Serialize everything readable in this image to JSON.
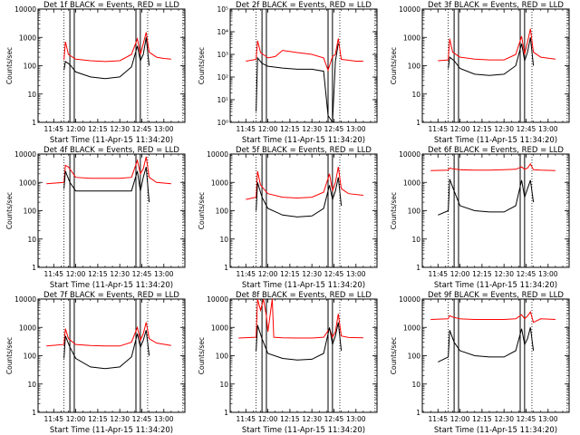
{
  "window": {
    "title": ""
  },
  "chart_data": [
    {
      "type": "line",
      "panel": 0,
      "title": "Det 1f BLACK = Events, RED = LLD",
      "xlabel": "Start Time (11-Apr-15 11:34:20)",
      "ylabel": "Counts/sec",
      "xlim": [
        "11:34:20",
        "13:14:20"
      ],
      "ylim": [
        1,
        10000
      ],
      "yscale": "log",
      "xticks": [
        "11:45",
        "12:00",
        "12:15",
        "12:30",
        "12:45",
        "13:00"
      ],
      "yticks": [
        "1",
        "10",
        "100",
        "1000",
        "10000"
      ],
      "solid_vlines": [
        "11:56",
        "11:59",
        "12:41",
        "12:44"
      ],
      "dotted_vlines": [
        "11:52",
        "12:49",
        "13:13"
      ],
      "series": [
        {
          "color": "#ff0000",
          "x": [
            "11:52",
            "11:53",
            "11:55",
            "12:00",
            "12:10",
            "12:20",
            "12:30",
            "12:38",
            "12:42",
            "12:44",
            "12:46",
            "12:48",
            "12:50",
            "12:55",
            "13:00",
            "13:05"
          ],
          "values": [
            160,
            700,
            250,
            170,
            150,
            140,
            150,
            250,
            900,
            250,
            600,
            1500,
            300,
            200,
            180,
            170
          ]
        },
        {
          "color": "#000000",
          "x": [
            "11:52",
            "11:53",
            "11:56",
            "12:00",
            "12:10",
            "12:20",
            "12:30",
            "12:38",
            "12:42",
            "12:44",
            "12:46",
            "12:48",
            "12:50"
          ],
          "values": [
            70,
            140,
            110,
            60,
            40,
            35,
            40,
            90,
            500,
            150,
            250,
            1000,
            100
          ]
        }
      ]
    },
    {
      "type": "line",
      "panel": 1,
      "title": "Det 2f BLACK = Events, RED = LLD",
      "xlabel": "Start Time (11-Apr-15 11:34:20)",
      "ylabel": "Counts/sec",
      "xlim": [
        "11:34:20",
        "13:14:20"
      ],
      "ylim": [
        1,
        100000
      ],
      "yscale": "log",
      "xticks": [
        "11:45",
        "12:00",
        "12:15",
        "12:30",
        "12:45",
        "13:00"
      ],
      "yticks": [
        "10⁰",
        "10¹",
        "10²",
        "10³",
        "10⁴",
        "10⁵"
      ],
      "solid_vlines": [
        "11:56",
        "11:59",
        "12:41",
        "12:44"
      ],
      "dotted_vlines": [
        "11:52",
        "12:49",
        "13:13"
      ],
      "series": [
        {
          "color": "#ff0000",
          "x": [
            "11:45",
            "11:52",
            "11:53",
            "11:55",
            "12:00",
            "12:05",
            "12:10",
            "12:20",
            "12:30",
            "12:38",
            "12:41",
            "12:44",
            "12:46",
            "12:48",
            "12:50",
            "13:00",
            "13:05"
          ],
          "values": [
            500,
            600,
            4000,
            1200,
            700,
            800,
            1500,
            1200,
            1000,
            700,
            200,
            800,
            1000,
            5000,
            600,
            500,
            500
          ]
        },
        {
          "color": "#000000",
          "x": [
            "11:52",
            "11:53",
            "11:56",
            "12:00",
            "12:10",
            "12:20",
            "12:30",
            "12:38",
            "12:41",
            "12:44",
            "12:46",
            "12:48"
          ],
          "values": [
            3,
            700,
            400,
            300,
            250,
            220,
            220,
            180,
            2,
            1,
            500,
            3000
          ]
        }
      ]
    },
    {
      "type": "line",
      "panel": 2,
      "title": "Det 3f BLACK = Events, RED = LLD",
      "xlabel": "Start Time (11-Apr-15 11:34:20)",
      "ylabel": "Counts/sec",
      "xlim": [
        "11:34:20",
        "13:14:20"
      ],
      "ylim": [
        1,
        10000
      ],
      "yscale": "log",
      "xticks": [
        "11:45",
        "12:00",
        "12:15",
        "12:30",
        "12:45",
        "13:00"
      ],
      "yticks": [
        "1",
        "10",
        "100",
        "1000",
        "10000"
      ],
      "solid_vlines": [
        "11:56",
        "11:59",
        "12:41",
        "12:44"
      ],
      "dotted_vlines": [
        "11:52",
        "12:49",
        "13:13"
      ],
      "series": [
        {
          "color": "#ff0000",
          "x": [
            "11:45",
            "11:52",
            "11:53",
            "11:55",
            "12:00",
            "12:10",
            "12:20",
            "12:30",
            "12:38",
            "12:42",
            "12:44",
            "12:46",
            "12:48",
            "12:50",
            "12:55",
            "13:05"
          ],
          "values": [
            150,
            160,
            900,
            300,
            200,
            170,
            160,
            160,
            250,
            1100,
            250,
            700,
            2000,
            300,
            200,
            170
          ]
        },
        {
          "color": "#000000",
          "x": [
            "11:52",
            "11:53",
            "11:56",
            "12:00",
            "12:10",
            "12:20",
            "12:30",
            "12:38",
            "12:42",
            "12:44",
            "12:46",
            "12:48",
            "12:50"
          ],
          "values": [
            80,
            200,
            150,
            80,
            50,
            45,
            50,
            100,
            600,
            150,
            300,
            1000,
            100
          ]
        }
      ]
    },
    {
      "type": "line",
      "panel": 3,
      "title": "Det 4f BLACK = Events, RED = LLD",
      "xlabel": "Start Time (11-Apr-15 11:34:20)",
      "ylabel": "Counts/sec",
      "xlim": [
        "11:34:20",
        "13:14:20"
      ],
      "ylim": [
        1,
        10000
      ],
      "yscale": "log",
      "xticks": [
        "11:45",
        "12:00",
        "12:15",
        "12:30",
        "12:45",
        "13:00"
      ],
      "yticks": [
        "1",
        "10",
        "100",
        "1000",
        "10000"
      ],
      "solid_vlines": [
        "11:56",
        "11:59",
        "12:41",
        "12:44"
      ],
      "dotted_vlines": [
        "11:52",
        "12:49",
        "13:13"
      ],
      "series": [
        {
          "color": "#ff0000",
          "x": [
            "11:40",
            "11:52",
            "11:53",
            "11:55",
            "12:00",
            "12:10",
            "12:20",
            "12:30",
            "12:38",
            "12:42",
            "12:44",
            "12:46",
            "12:48",
            "12:50",
            "12:55",
            "13:05"
          ],
          "values": [
            900,
            1000,
            4000,
            3500,
            1500,
            1400,
            1400,
            1400,
            1500,
            6000,
            2000,
            3000,
            8000,
            1500,
            1000,
            900
          ]
        },
        {
          "color": "#000000",
          "x": [
            "11:52",
            "11:53",
            "11:56",
            "12:00",
            "12:10",
            "12:20",
            "12:30",
            "12:38",
            "12:42",
            "12:44",
            "12:46",
            "12:48",
            "12:50"
          ],
          "values": [
            600,
            2500,
            1000,
            500,
            500,
            500,
            500,
            500,
            2500,
            500,
            1500,
            3500,
            200
          ]
        }
      ]
    },
    {
      "type": "line",
      "panel": 4,
      "title": "Det 5f BLACK = Events, RED = LLD",
      "xlabel": "Start Time (11-Apr-15 11:34:20)",
      "ylabel": "Counts/sec",
      "xlim": [
        "11:34:20",
        "13:14:20"
      ],
      "ylim": [
        1,
        10000
      ],
      "yscale": "log",
      "xticks": [
        "11:45",
        "12:00",
        "12:15",
        "12:30",
        "12:45",
        "13:00"
      ],
      "yticks": [
        "1",
        "10",
        "100",
        "1000",
        "10000"
      ],
      "solid_vlines": [
        "11:56",
        "11:59",
        "12:41",
        "12:44"
      ],
      "dotted_vlines": [
        "11:52",
        "12:49",
        "13:13"
      ],
      "series": [
        {
          "color": "#ff0000",
          "x": [
            "11:45",
            "11:52",
            "11:53",
            "11:55",
            "12:00",
            "12:10",
            "12:20",
            "12:30",
            "12:38",
            "12:42",
            "12:44",
            "12:46",
            "12:48",
            "12:50",
            "12:55",
            "13:05"
          ],
          "values": [
            250,
            300,
            2500,
            800,
            400,
            300,
            280,
            300,
            450,
            2000,
            500,
            1000,
            3500,
            600,
            400,
            350
          ]
        },
        {
          "color": "#000000",
          "x": [
            "11:52",
            "11:53",
            "11:56",
            "12:00",
            "12:10",
            "12:20",
            "12:30",
            "12:38",
            "12:42",
            "12:44",
            "12:46",
            "12:48",
            "12:50"
          ],
          "values": [
            100,
            1000,
            300,
            120,
            70,
            60,
            65,
            120,
            800,
            250,
            500,
            1500,
            150
          ]
        }
      ]
    },
    {
      "type": "line",
      "panel": 5,
      "title": "Det 6f BLACK = Events, RED = LLD",
      "xlabel": "Start Time (11-Apr-15 11:34:20)",
      "ylabel": "Counts/sec",
      "xlim": [
        "11:34:20",
        "13:14:20"
      ],
      "ylim": [
        1,
        10000
      ],
      "yscale": "log",
      "xticks": [
        "11:45",
        "12:00",
        "12:15",
        "12:30",
        "12:45",
        "13:00"
      ],
      "yticks": [
        "1",
        "10",
        "100",
        "1000",
        "10000"
      ],
      "solid_vlines": [
        "11:56",
        "11:59",
        "12:41",
        "12:44"
      ],
      "dotted_vlines": [
        "11:52",
        "12:49",
        "13:13"
      ],
      "series": [
        {
          "color": "#ff0000",
          "x": [
            "11:40",
            "11:52",
            "11:53",
            "11:55",
            "12:00",
            "12:10",
            "12:20",
            "12:30",
            "12:38",
            "12:42",
            "12:44",
            "12:46",
            "12:48",
            "12:50",
            "12:55",
            "13:05"
          ],
          "values": [
            2600,
            2700,
            3200,
            3000,
            2800,
            2700,
            2700,
            2800,
            2900,
            3500,
            2900,
            3200,
            4500,
            2800,
            2700,
            2600
          ]
        },
        {
          "color": "#000000",
          "x": [
            "11:45",
            "11:52",
            "11:53",
            "11:56",
            "12:00",
            "12:10",
            "12:20",
            "12:30",
            "12:38",
            "12:42",
            "12:44",
            "12:46",
            "12:48",
            "12:50"
          ],
          "values": [
            70,
            100,
            1300,
            500,
            150,
            100,
            90,
            90,
            150,
            1200,
            300,
            600,
            1200,
            200
          ]
        }
      ]
    },
    {
      "type": "line",
      "panel": 6,
      "title": "Det 7f BLACK = Events, RED = LLD",
      "xlabel": "Start Time (11-Apr-15 11:34:20)",
      "ylabel": "Counts/sec",
      "xlim": [
        "11:34:20",
        "13:14:20"
      ],
      "ylim": [
        1,
        10000
      ],
      "yscale": "log",
      "xticks": [
        "11:45",
        "12:00",
        "12:15",
        "12:30",
        "12:45",
        "13:00"
      ],
      "yticks": [
        "1",
        "10",
        "100",
        "1000",
        "10000"
      ],
      "solid_vlines": [
        "11:56",
        "11:59",
        "12:41",
        "12:44"
      ],
      "dotted_vlines": [
        "11:52",
        "12:49",
        "13:13"
      ],
      "series": [
        {
          "color": "#ff0000",
          "x": [
            "11:40",
            "11:52",
            "11:53",
            "11:55",
            "12:00",
            "12:10",
            "12:20",
            "12:30",
            "12:38",
            "12:42",
            "12:44",
            "12:46",
            "12:48",
            "12:50",
            "12:55",
            "13:05"
          ],
          "values": [
            220,
            250,
            900,
            400,
            250,
            230,
            220,
            220,
            300,
            1000,
            350,
            600,
            1500,
            400,
            280,
            230
          ]
        },
        {
          "color": "#000000",
          "x": [
            "11:52",
            "11:53",
            "11:56",
            "12:00",
            "12:10",
            "12:20",
            "12:30",
            "12:38",
            "12:42",
            "12:44",
            "12:46",
            "12:48",
            "12:50"
          ],
          "values": [
            80,
            500,
            200,
            80,
            40,
            35,
            40,
            90,
            600,
            200,
            350,
            800,
            100
          ]
        }
      ]
    },
    {
      "type": "line",
      "panel": 7,
      "title": "Det 8f BLACK = Events, RED = LLD",
      "xlabel": "Start Time (11-Apr-15 11:34:20)",
      "ylabel": "Counts/sec",
      "xlim": [
        "11:34:20",
        "13:14:20"
      ],
      "ylim": [
        1,
        10000
      ],
      "yscale": "log",
      "xticks": [
        "11:45",
        "12:00",
        "12:15",
        "12:30",
        "12:45",
        "13:00"
      ],
      "yticks": [
        "1",
        "10",
        "100",
        "1000",
        "10000"
      ],
      "solid_vlines": [
        "11:56",
        "11:59",
        "12:41",
        "12:44"
      ],
      "dotted_vlines": [
        "11:52",
        "12:49",
        "13:13"
      ],
      "series": [
        {
          "color": "#ff0000",
          "x": [
            "11:40",
            "11:52",
            "11:53",
            "11:55",
            "11:57",
            "11:59",
            "12:00",
            "12:03",
            "12:04",
            "12:10",
            "12:20",
            "12:30",
            "12:38",
            "12:42",
            "12:44",
            "12:46",
            "12:48",
            "12:50",
            "12:55",
            "13:05"
          ],
          "values": [
            420,
            450,
            10000,
            4000,
            10000,
            2500,
            700,
            10000,
            450,
            430,
            420,
            420,
            450,
            900,
            450,
            700,
            3000,
            500,
            440,
            430
          ]
        },
        {
          "color": "#000000",
          "x": [
            "11:52",
            "11:53",
            "11:56",
            "12:00",
            "12:10",
            "12:20",
            "12:30",
            "12:38",
            "12:42",
            "12:44",
            "12:46",
            "12:48",
            "12:50"
          ],
          "values": [
            150,
            1200,
            400,
            120,
            80,
            70,
            75,
            120,
            1000,
            250,
            500,
            1500,
            150
          ]
        }
      ]
    },
    {
      "type": "line",
      "panel": 8,
      "title": "Det 9f BLACK = Events, RED = LLD",
      "xlabel": "Start Time (11-Apr-15 11:34:20)",
      "ylabel": "Counts/sec",
      "xlim": [
        "11:34:20",
        "13:14:20"
      ],
      "ylim": [
        1,
        10000
      ],
      "yscale": "log",
      "xticks": [
        "11:45",
        "12:00",
        "12:15",
        "12:30",
        "12:45",
        "13:00"
      ],
      "yticks": [
        "1",
        "10",
        "100",
        "1000",
        "10000"
      ],
      "solid_vlines": [
        "11:56",
        "11:59",
        "12:41",
        "12:44"
      ],
      "dotted_vlines": [
        "11:52",
        "12:49",
        "13:13"
      ],
      "series": [
        {
          "color": "#ff0000",
          "x": [
            "11:40",
            "11:52",
            "11:53",
            "11:55",
            "12:00",
            "12:10",
            "12:20",
            "12:30",
            "12:38",
            "12:42",
            "12:44",
            "12:46",
            "12:48",
            "12:50",
            "12:55",
            "13:05"
          ],
          "values": [
            1900,
            2000,
            2600,
            2300,
            2000,
            1900,
            1900,
            1900,
            2000,
            2800,
            2000,
            2500,
            3500,
            1500,
            2000,
            1900
          ]
        },
        {
          "color": "#000000",
          "x": [
            "11:45",
            "11:52",
            "11:53",
            "11:56",
            "12:00",
            "12:10",
            "12:20",
            "12:30",
            "12:38",
            "12:42",
            "12:44",
            "12:46",
            "12:48",
            "12:50"
          ],
          "values": [
            60,
            90,
            800,
            300,
            150,
            100,
            90,
            90,
            150,
            900,
            250,
            400,
            1000,
            150
          ]
        }
      ]
    }
  ]
}
